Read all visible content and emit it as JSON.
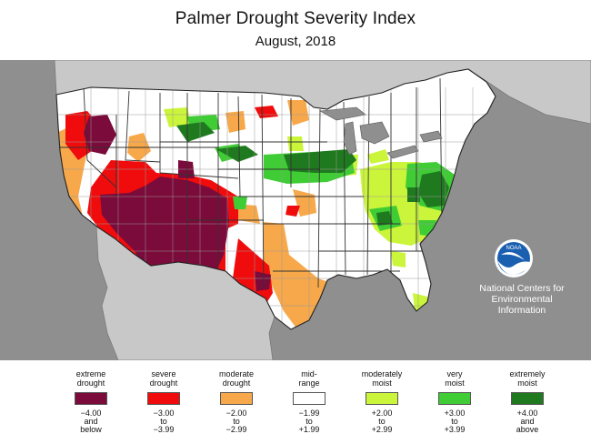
{
  "title": "Palmer Drought Severity Index",
  "subtitle": "August, 2018",
  "credit": {
    "line1": "National Centers for",
    "line2": "Environmental",
    "line3": "Information",
    "logo_text": "NOAA"
  },
  "colors": {
    "ocean": "#8f8f8f",
    "land_outside": "#c8c8c8",
    "water_lakes": "#8f8f8f",
    "extreme_drought": "#7b0b3a",
    "severe_drought": "#f00c0c",
    "moderate_drought": "#f7a84a",
    "mid_range": "#ffffff",
    "moderately_moist": "#cbf53a",
    "very_moist": "#3fcc35",
    "extremely_moist": "#1f7a1f"
  },
  "legend": [
    {
      "label_top": "extreme",
      "label_bottom": "drought",
      "color": "#7b0b3a",
      "r1": "−4.00",
      "r2": "and",
      "r3": "below"
    },
    {
      "label_top": "severe",
      "label_bottom": "drought",
      "color": "#f00c0c",
      "r1": "−3.00",
      "r2": "to",
      "r3": "−3.99"
    },
    {
      "label_top": "moderate",
      "label_bottom": "drought",
      "color": "#f7a84a",
      "r1": "−2.00",
      "r2": "to",
      "r3": "−2.99"
    },
    {
      "label_top": "mid-",
      "label_bottom": "range",
      "color": "#ffffff",
      "r1": "−1.99",
      "r2": "to",
      "r3": "+1.99"
    },
    {
      "label_top": "moderately",
      "label_bottom": "moist",
      "color": "#cbf53a",
      "r1": "+2.00",
      "r2": "to",
      "r3": "+2.99"
    },
    {
      "label_top": "very",
      "label_bottom": "moist",
      "color": "#3fcc35",
      "r1": "+3.00",
      "r2": "to",
      "r3": "+3.99"
    },
    {
      "label_top": "extremely",
      "label_bottom": "moist",
      "color": "#1f7a1f",
      "r1": "+4.00",
      "r2": "and",
      "r3": "above"
    }
  ]
}
